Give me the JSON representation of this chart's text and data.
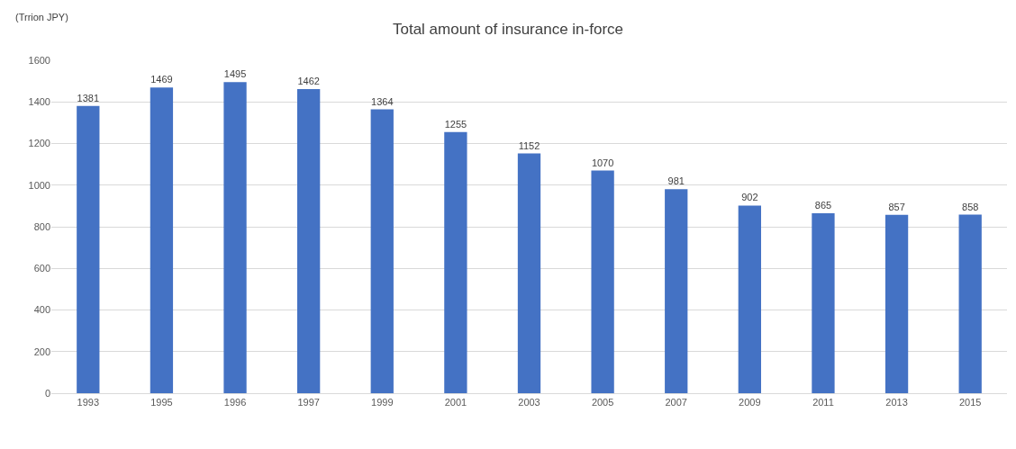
{
  "chart_data": {
    "type": "bar",
    "title": "Total amount of insurance in-force",
    "ylabel": "(Trrion JPY)",
    "categories": [
      "1993",
      "1995",
      "1996",
      "1997",
      "1999",
      "2001",
      "2003",
      "2005",
      "2007",
      "2009",
      "2011",
      "2013",
      "2015"
    ],
    "values": [
      1381,
      1469,
      1495,
      1462,
      1364,
      1255,
      1152,
      1070,
      981,
      902,
      865,
      857,
      858
    ],
    "color": "#4472c4",
    "ylim": [
      0,
      1600
    ],
    "yticks": [
      0,
      200,
      400,
      600,
      800,
      1000,
      1200,
      1400,
      1600
    ],
    "grid": "y",
    "data_labels": true
  }
}
